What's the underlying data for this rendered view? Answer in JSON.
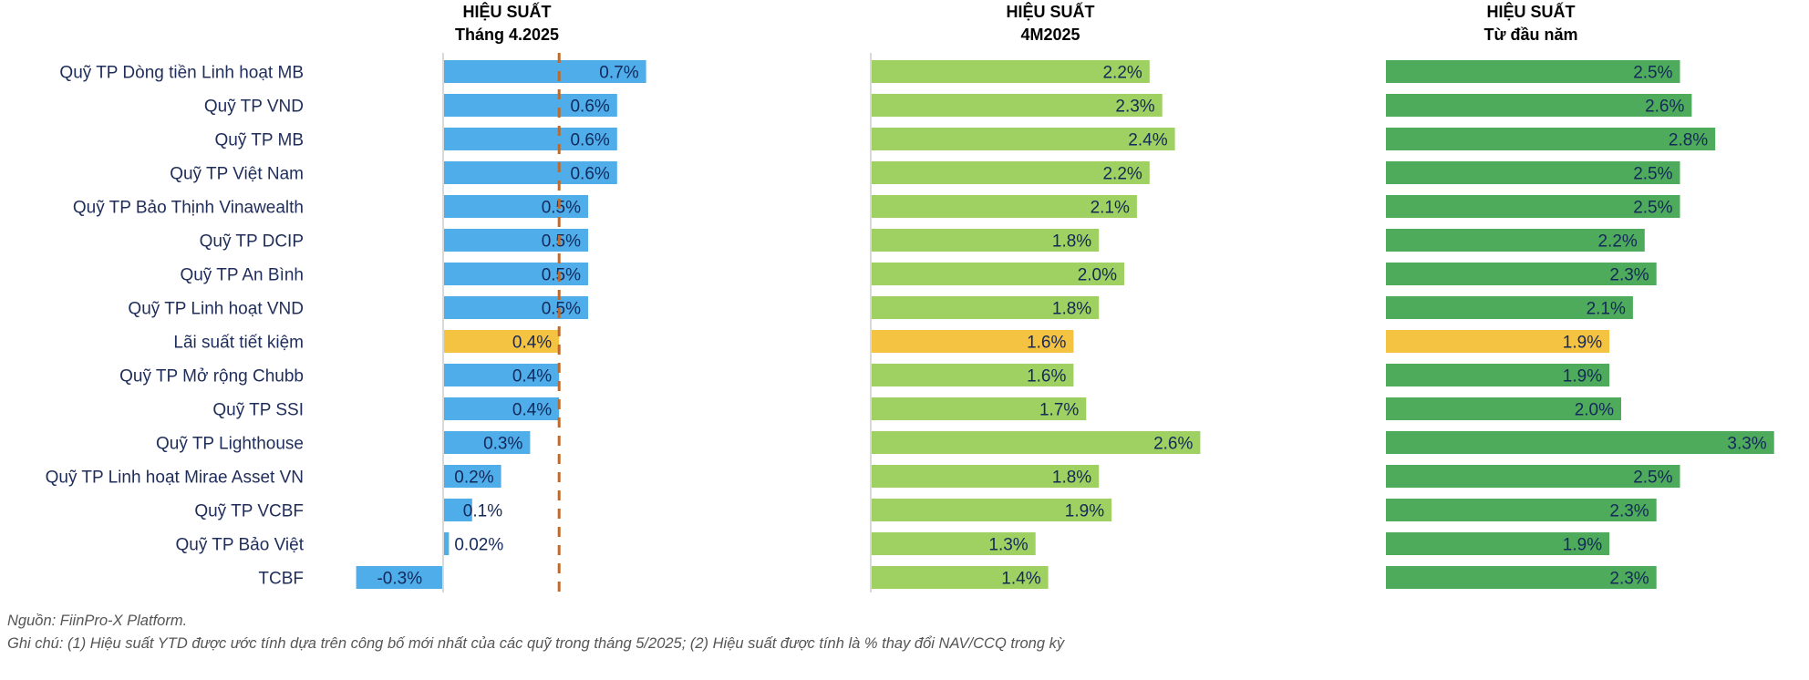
{
  "colors": {
    "fund_month": "#4fadea",
    "fund_4m": "#9fd062",
    "fund_ytd": "#4eab5c",
    "savings": "#f5c342",
    "reference_line": "#c0692a",
    "negative_label": "#e03a2a",
    "value_label": "#14285a",
    "category_label": "#1f2d5a"
  },
  "chart_data": [
    {
      "type": "bar",
      "orientation": "horizontal",
      "title_line1": "HIỆU SUẤT",
      "title_line2": "Tháng 4.2025",
      "categories": [
        "Quỹ TP Dòng tiền Linh hoạt MB",
        "Quỹ TP VND",
        "Quỹ TP MB",
        "Quỹ TP Việt Nam",
        "Quỹ TP Bảo Thịnh Vinawealth",
        "Quỹ TP DCIP",
        "Quỹ TP An Bình",
        "Quỹ TP Linh hoạt VND",
        "Lãi suất tiết kiệm",
        "Quỹ TP Mở rộng Chubb",
        "Quỹ TP SSI",
        "Quỹ TP Lighthouse",
        "Quỹ TP Linh hoạt Mirae Asset VN",
        "Quỹ TP VCBF",
        "Quỹ TP Bảo Việt",
        "TCBF"
      ],
      "values": [
        0.7,
        0.6,
        0.6,
        0.6,
        0.5,
        0.5,
        0.5,
        0.5,
        0.4,
        0.4,
        0.4,
        0.3,
        0.2,
        0.1,
        0.02,
        -0.3
      ],
      "labels": [
        "0.7%",
        "0.6%",
        "0.6%",
        "0.6%",
        "0.5%",
        "0.5%",
        "0.5%",
        "0.5%",
        "0.4%",
        "0.4%",
        "0.4%",
        "0.3%",
        "0.2%",
        "0.1%",
        "0.02%",
        "-0.3%"
      ],
      "highlight_category": "Lãi suất tiết kiệm",
      "reference_line": {
        "value": 0.4,
        "style": "dashed"
      },
      "grid": false
    },
    {
      "type": "bar",
      "orientation": "horizontal",
      "title_line1": "HIỆU SUẤT",
      "title_line2": "4M2025",
      "values": [
        2.2,
        2.3,
        2.4,
        2.2,
        2.1,
        1.8,
        2.0,
        1.8,
        1.6,
        1.6,
        1.7,
        2.6,
        1.8,
        1.9,
        1.3,
        1.4
      ],
      "labels": [
        "2.2%",
        "2.3%",
        "2.4%",
        "2.2%",
        "2.1%",
        "1.8%",
        "2.0%",
        "1.8%",
        "1.6%",
        "1.6%",
        "1.7%",
        "2.6%",
        "1.8%",
        "1.9%",
        "1.3%",
        "1.4%"
      ],
      "grid": false
    },
    {
      "type": "bar",
      "orientation": "horizontal",
      "title_line1": "HIỆU SUẤT",
      "title_line2": "Từ đầu năm",
      "values": [
        2.5,
        2.6,
        2.8,
        2.5,
        2.5,
        2.2,
        2.3,
        2.1,
        1.9,
        1.9,
        2.0,
        3.3,
        2.5,
        2.3,
        1.9,
        2.3
      ],
      "labels": [
        "2.5%",
        "2.6%",
        "2.8%",
        "2.5%",
        "2.5%",
        "2.2%",
        "2.3%",
        "2.1%",
        "1.9%",
        "1.9%",
        "2.0%",
        "3.3%",
        "2.5%",
        "2.3%",
        "1.9%",
        "2.3%"
      ],
      "grid": false
    }
  ],
  "footnotes": {
    "source": "Nguồn: FiinPro-X Platform.",
    "note": "Ghi chú: (1) Hiệu suất YTD được ước tính dựa trên công bố mới nhất của các quỹ trong tháng 5/2025; (2) Hiệu suất được tính là % thay đổi NAV/CCQ trong kỳ"
  }
}
